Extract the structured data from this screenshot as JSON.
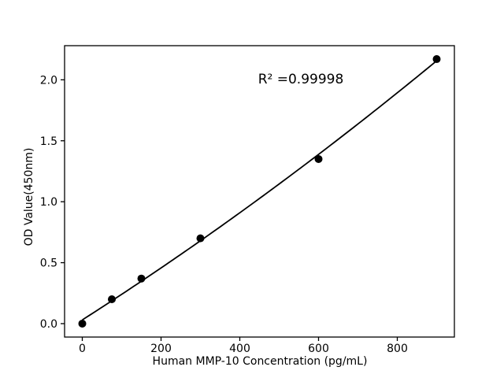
{
  "figure": {
    "background": "#ffffff",
    "foreground": "#000000"
  },
  "chart_data": {
    "type": "scatter",
    "title": "",
    "xlabel": "Human MMP-10 Concentration (pg/mL)",
    "ylabel": "OD Value(450nm)",
    "annotation": "R² =0.99998",
    "x": [
      0,
      75,
      150,
      300,
      600,
      900
    ],
    "y": [
      0.0,
      0.2,
      0.37,
      0.7,
      1.35,
      2.17
    ],
    "x_tick_labels": [
      "0",
      "200",
      "400",
      "600",
      "800"
    ],
    "x_tick_values": [
      0,
      200,
      400,
      600,
      800
    ],
    "y_tick_labels": [
      "0.0",
      "0.5",
      "1.0",
      "1.5",
      "2.0"
    ],
    "y_tick_values": [
      0.0,
      0.5,
      1.0,
      1.5,
      2.0
    ],
    "xlim": [
      -45,
      945
    ],
    "ylim": [
      -0.11,
      2.28
    ],
    "fit_type": "quadratic",
    "grid": false,
    "legend": "none",
    "marker_color": "#000000",
    "line_color": "#000000"
  }
}
